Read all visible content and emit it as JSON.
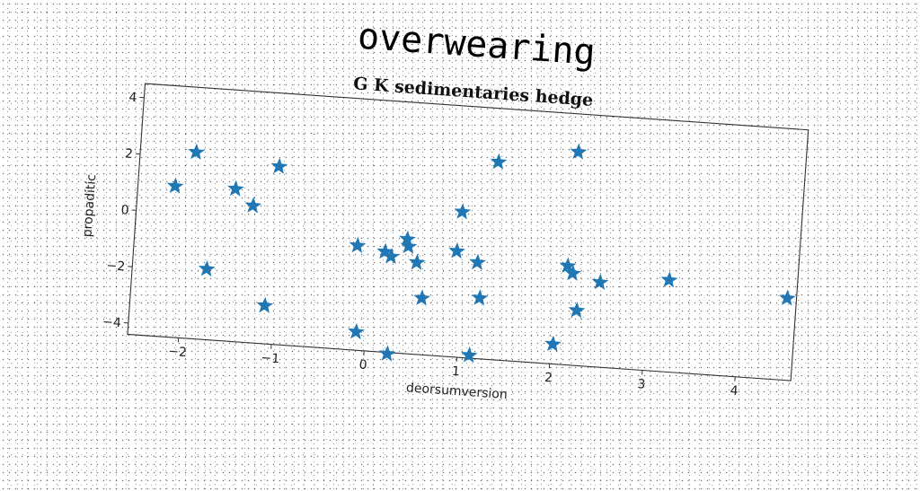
{
  "chart_data": {
    "type": "scatter",
    "title": "overwearing",
    "subtitle": "G K sedimentaries hedge",
    "xlabel": "deorsumversion",
    "ylabel": "propaditic",
    "xlim": [
      -2.55,
      4.6
    ],
    "ylim": [
      -4.4,
      4.5
    ],
    "xticks": [
      -2,
      -1,
      0,
      1,
      2,
      3,
      4
    ],
    "xtick_labels": [
      "−2",
      "−1",
      "0",
      "1",
      "2",
      "3",
      "4"
    ],
    "yticks": [
      -4,
      -2,
      0,
      2,
      4
    ],
    "ytick_labels": [
      "−4",
      "−2",
      "0",
      "2",
      "4"
    ],
    "grid": false,
    "marker": "star",
    "color": "#1f77b4",
    "points": [
      {
        "x": -2.15,
        "y": 0.95
      },
      {
        "x": -1.95,
        "y": 2.2
      },
      {
        "x": -1.75,
        "y": -1.9
      },
      {
        "x": -1.5,
        "y": 1.0
      },
      {
        "x": -1.3,
        "y": 0.45
      },
      {
        "x": -1.1,
        "y": -3.05
      },
      {
        "x": -1.05,
        "y": 1.9
      },
      {
        "x": -0.15,
        "y": -0.7
      },
      {
        "x": -0.1,
        "y": -3.75
      },
      {
        "x": 0.15,
        "y": -0.85
      },
      {
        "x": 0.22,
        "y": -1.0
      },
      {
        "x": 0.25,
        "y": -4.45
      },
      {
        "x": 0.38,
        "y": -0.35
      },
      {
        "x": 0.4,
        "y": -0.6
      },
      {
        "x": 0.5,
        "y": -1.15
      },
      {
        "x": 0.58,
        "y": -2.4
      },
      {
        "x": 0.92,
        "y": -0.65
      },
      {
        "x": 0.95,
        "y": 0.75
      },
      {
        "x": 1.13,
        "y": -4.3
      },
      {
        "x": 1.15,
        "y": -1.0
      },
      {
        "x": 1.2,
        "y": -2.25
      },
      {
        "x": 1.3,
        "y": 2.6
      },
      {
        "x": 2.02,
        "y": -3.7
      },
      {
        "x": 2.12,
        "y": -0.9
      },
      {
        "x": 2.15,
        "y": 3.15
      },
      {
        "x": 2.18,
        "y": -1.15
      },
      {
        "x": 2.25,
        "y": -2.45
      },
      {
        "x": 2.48,
        "y": -1.4
      },
      {
        "x": 3.22,
        "y": -1.15
      },
      {
        "x": 4.5,
        "y": -1.5
      }
    ]
  }
}
